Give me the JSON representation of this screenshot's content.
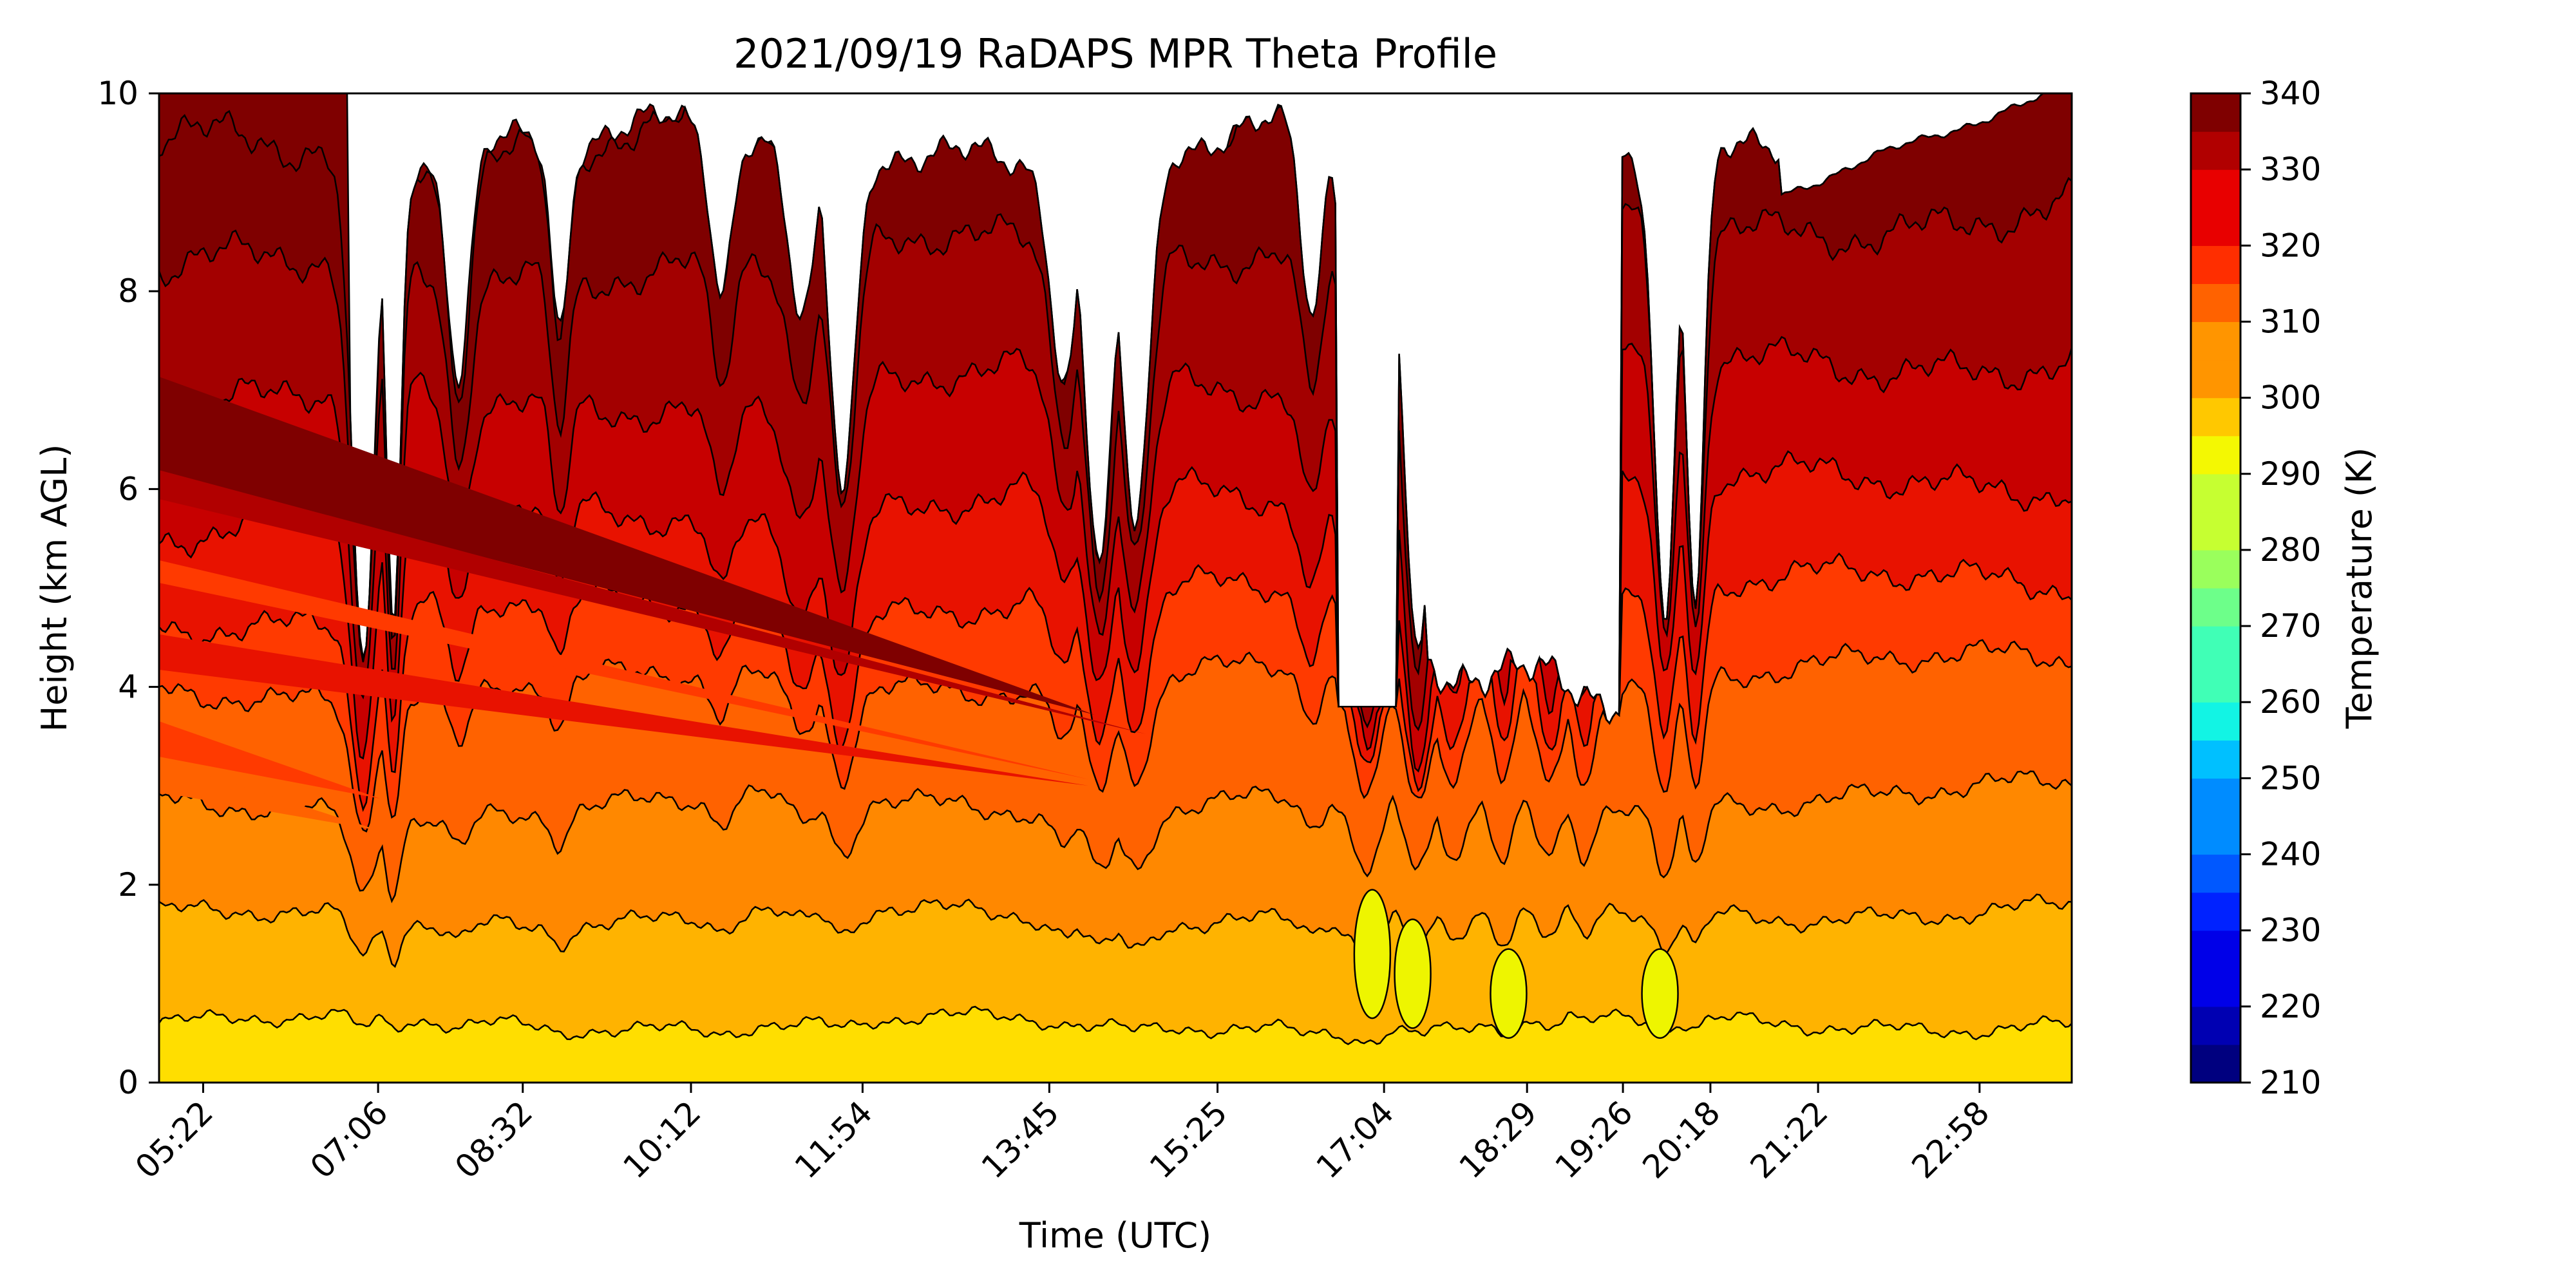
{
  "chart_data": {
    "type": "heatmap",
    "title": "2021/09/19 RaDAPS MPR Theta Profile",
    "xlabel": "Time (UTC)",
    "ylabel": "Height (km AGL)",
    "colorbar_label": "Temperature (K)",
    "x_tick_labels": [
      "05:22",
      "07:06",
      "08:32",
      "10:12",
      "11:54",
      "13:45",
      "15:25",
      "17:04",
      "18:29",
      "19:26",
      "20:18",
      "21:22",
      "22:58"
    ],
    "y_ticks": [
      0,
      2,
      4,
      6,
      8,
      10
    ],
    "ylim": [
      0,
      10
    ],
    "colorbar_ticks": [
      210,
      220,
      230,
      240,
      250,
      260,
      270,
      280,
      290,
      300,
      310,
      320,
      330,
      340
    ],
    "colorbar_range": [
      210,
      340
    ],
    "colorbar_step": 5,
    "colormap": "jet",
    "level_colors": [
      "#00007f",
      "#0000b2",
      "#0000e8",
      "#0022ff",
      "#0058ff",
      "#008cff",
      "#00c0ff",
      "#12f4e4",
      "#40ffb6",
      "#6dff8a",
      "#9aff5c",
      "#c6ff31",
      "#f4f802",
      "#ffc800",
      "#ff9500",
      "#ff6200",
      "#ff2e00",
      "#e80000",
      "#b10000",
      "#7f0000"
    ],
    "theta_profile_km": {
      "heights_km": [
        0.6,
        1.7,
        2.85,
        4.1,
        4.9,
        5.9,
        7.1,
        8.5,
        9.8
      ],
      "theta_K": [
        302,
        307,
        312,
        317,
        320,
        325,
        330,
        335,
        340
      ]
    },
    "gap_top_km": 10,
    "data_sample_x_hours": [
      5.0,
      7.1,
      8.5,
      10.2,
      11.9,
      13.75,
      15.4,
      17.07,
      18.48,
      19.43,
      20.3,
      21.37,
      22.97,
      23.9
    ]
  }
}
